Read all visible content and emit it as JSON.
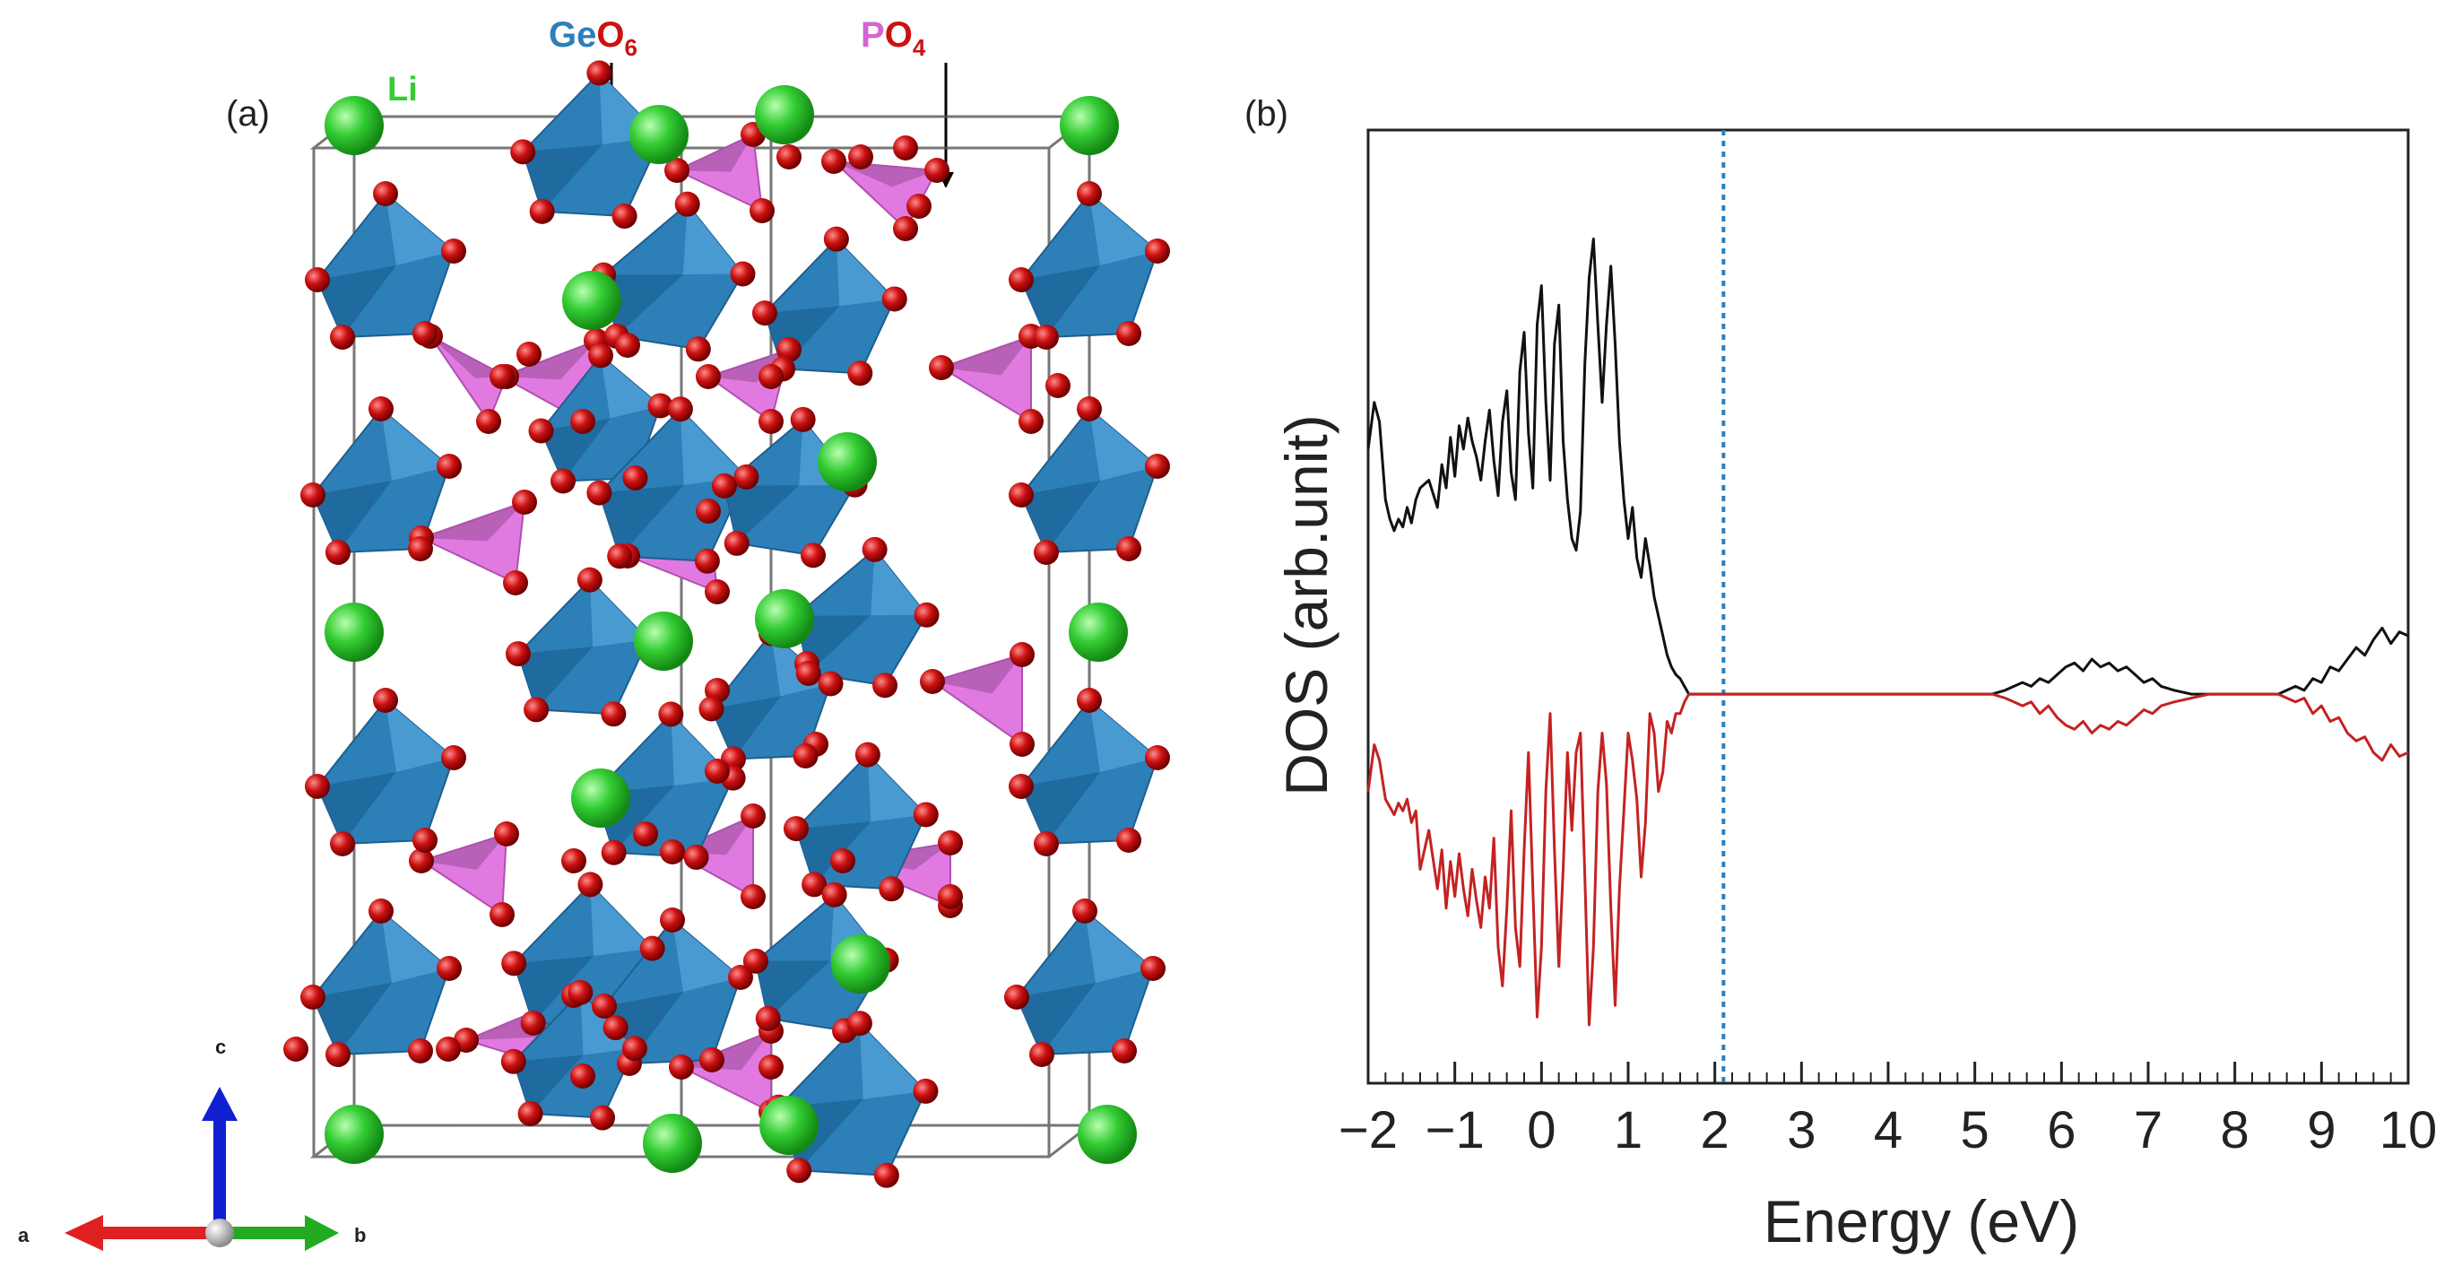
{
  "panel_a": {
    "label": "(a)",
    "legend": {
      "li": "Li",
      "geo6_element": "Ge",
      "geo6_oxygen": "O",
      "geo6_sub": "6",
      "po4_element": "P",
      "po4_oxygen": "O",
      "po4_sub": "4"
    },
    "axes": {
      "a": "a",
      "b": "b",
      "c": "c"
    },
    "colors": {
      "li": "#33cc33",
      "oxygen": "#cc1111",
      "geo6": "#2d7fb8",
      "po4": "#d266d2",
      "axis_a": "#e02020",
      "axis_b": "#22aa22",
      "axis_c": "#1020d0"
    }
  },
  "chart_data": {
    "type": "line",
    "panel_label": "(b)",
    "xlabel": "Energy (eV)",
    "ylabel": "DOS (arb.unit)",
    "xlim": [
      -2,
      10
    ],
    "xticks": [
      "−2",
      "−1",
      "0",
      "1",
      "2",
      "3",
      "4",
      "5",
      "6",
      "7",
      "8",
      "9",
      "10"
    ],
    "fermi_level": 2.1,
    "fermi_color": "#2a7fc0",
    "yticks_shown": false,
    "series": [
      {
        "color": "#111111",
        "x": [
          -2.0,
          -1.93,
          -1.87,
          -1.8,
          -1.75,
          -1.7,
          -1.65,
          -1.6,
          -1.55,
          -1.5,
          -1.45,
          -1.4,
          -1.3,
          -1.2,
          -1.15,
          -1.1,
          -1.05,
          -1.0,
          -0.95,
          -0.9,
          -0.85,
          -0.8,
          -0.75,
          -0.7,
          -0.65,
          -0.6,
          -0.55,
          -0.5,
          -0.45,
          -0.4,
          -0.35,
          -0.3,
          -0.25,
          -0.2,
          -0.15,
          -0.1,
          -0.05,
          0.0,
          0.05,
          0.1,
          0.15,
          0.2,
          0.25,
          0.3,
          0.35,
          0.4,
          0.45,
          0.5,
          0.55,
          0.6,
          0.65,
          0.7,
          0.75,
          0.8,
          0.85,
          0.9,
          0.95,
          1.0,
          1.05,
          1.1,
          1.15,
          1.2,
          1.25,
          1.3,
          1.35,
          1.4,
          1.45,
          1.5,
          1.55,
          1.6,
          1.65,
          1.7,
          1.75,
          1.8,
          1.9,
          2.0,
          2.1,
          5.0,
          5.2,
          5.35,
          5.45,
          5.55,
          5.65,
          5.75,
          5.85,
          5.95,
          6.05,
          6.15,
          6.25,
          6.35,
          6.45,
          6.55,
          6.65,
          6.75,
          6.85,
          6.95,
          7.05,
          7.15,
          7.3,
          7.5,
          7.7,
          8.0,
          8.5,
          8.7,
          8.8,
          8.9,
          9.0,
          9.1,
          9.2,
          9.3,
          9.4,
          9.5,
          9.6,
          9.7,
          9.8,
          9.9,
          10.0
        ],
        "y": [
          0.18,
          0.3,
          0.25,
          0.05,
          0.0,
          -0.03,
          0.0,
          -0.02,
          0.03,
          -0.01,
          0.05,
          0.08,
          0.1,
          0.03,
          0.14,
          0.08,
          0.21,
          0.11,
          0.24,
          0.18,
          0.26,
          0.2,
          0.16,
          0.1,
          0.2,
          0.28,
          0.15,
          0.06,
          0.25,
          0.33,
          0.12,
          0.05,
          0.38,
          0.48,
          0.22,
          0.08,
          0.5,
          0.6,
          0.3,
          0.1,
          0.45,
          0.55,
          0.2,
          0.05,
          -0.05,
          -0.08,
          0.02,
          0.4,
          0.62,
          0.72,
          0.5,
          0.3,
          0.5,
          0.65,
          0.45,
          0.2,
          0.05,
          -0.05,
          0.03,
          -0.1,
          -0.15,
          -0.05,
          -0.12,
          -0.2,
          -0.25,
          -0.3,
          -0.35,
          -0.38,
          -0.4,
          -0.41,
          -0.43,
          -0.45,
          -0.45,
          -0.45,
          -0.45,
          -0.45,
          -0.45,
          -0.45,
          -0.45,
          -0.44,
          -0.43,
          -0.42,
          -0.43,
          -0.41,
          -0.42,
          -0.4,
          -0.38,
          -0.37,
          -0.39,
          -0.36,
          -0.38,
          -0.37,
          -0.39,
          -0.38,
          -0.4,
          -0.42,
          -0.41,
          -0.43,
          -0.44,
          -0.45,
          -0.45,
          -0.45,
          -0.45,
          -0.43,
          -0.44,
          -0.41,
          -0.42,
          -0.38,
          -0.39,
          -0.36,
          -0.33,
          -0.35,
          -0.31,
          -0.28,
          -0.32,
          -0.29,
          -0.3
        ]
      },
      {
        "color": "#c42222",
        "x": [
          -2.0,
          -1.93,
          -1.87,
          -1.8,
          -1.75,
          -1.7,
          -1.65,
          -1.6,
          -1.55,
          -1.5,
          -1.45,
          -1.4,
          -1.3,
          -1.2,
          -1.15,
          -1.1,
          -1.05,
          -1.0,
          -0.95,
          -0.9,
          -0.85,
          -0.8,
          -0.75,
          -0.7,
          -0.65,
          -0.6,
          -0.55,
          -0.5,
          -0.45,
          -0.4,
          -0.35,
          -0.3,
          -0.25,
          -0.2,
          -0.15,
          -0.1,
          -0.05,
          0.0,
          0.05,
          0.1,
          0.15,
          0.2,
          0.25,
          0.3,
          0.35,
          0.4,
          0.45,
          0.5,
          0.55,
          0.6,
          0.65,
          0.7,
          0.75,
          0.8,
          0.85,
          0.9,
          0.95,
          1.0,
          1.05,
          1.1,
          1.15,
          1.2,
          1.25,
          1.3,
          1.35,
          1.4,
          1.45,
          1.5,
          1.55,
          1.6,
          1.65,
          1.7,
          1.75,
          1.8,
          1.9,
          2.0,
          2.1,
          5.0,
          5.2,
          5.35,
          5.45,
          5.55,
          5.65,
          5.75,
          5.85,
          5.95,
          6.05,
          6.15,
          6.25,
          6.35,
          6.45,
          6.55,
          6.65,
          6.75,
          6.85,
          6.95,
          7.05,
          7.15,
          7.3,
          7.5,
          7.7,
          8.0,
          8.5,
          8.7,
          8.8,
          8.9,
          9.0,
          9.1,
          9.2,
          9.3,
          9.4,
          9.5,
          9.6,
          9.7,
          9.8,
          9.9,
          10.0
        ],
        "y": [
          -0.7,
          -0.58,
          -0.62,
          -0.72,
          -0.74,
          -0.76,
          -0.73,
          -0.75,
          -0.72,
          -0.78,
          -0.75,
          -0.9,
          -0.8,
          -0.95,
          -0.85,
          -1.0,
          -0.88,
          -0.97,
          -0.86,
          -0.95,
          -1.02,
          -0.9,
          -0.98,
          -1.05,
          -0.92,
          -1.0,
          -0.82,
          -1.1,
          -1.2,
          -1.0,
          -0.75,
          -1.05,
          -1.15,
          -0.85,
          -0.6,
          -0.95,
          -1.28,
          -1.1,
          -0.7,
          -0.5,
          -0.85,
          -1.15,
          -0.9,
          -0.6,
          -0.8,
          -0.6,
          -0.55,
          -0.92,
          -1.3,
          -1.1,
          -0.7,
          -0.55,
          -0.68,
          -1.0,
          -1.25,
          -0.95,
          -0.75,
          -0.55,
          -0.62,
          -0.72,
          -0.92,
          -0.78,
          -0.5,
          -0.55,
          -0.7,
          -0.65,
          -0.52,
          -0.55,
          -0.5,
          -0.5,
          -0.47,
          -0.45,
          -0.45,
          -0.45,
          -0.45,
          -0.45,
          -0.45,
          -0.45,
          -0.45,
          -0.46,
          -0.47,
          -0.48,
          -0.47,
          -0.5,
          -0.48,
          -0.51,
          -0.53,
          -0.54,
          -0.52,
          -0.55,
          -0.53,
          -0.54,
          -0.52,
          -0.53,
          -0.51,
          -0.49,
          -0.5,
          -0.48,
          -0.47,
          -0.46,
          -0.45,
          -0.45,
          -0.45,
          -0.47,
          -0.46,
          -0.5,
          -0.48,
          -0.52,
          -0.51,
          -0.55,
          -0.57,
          -0.56,
          -0.6,
          -0.62,
          -0.58,
          -0.61,
          -0.6
        ]
      }
    ]
  }
}
